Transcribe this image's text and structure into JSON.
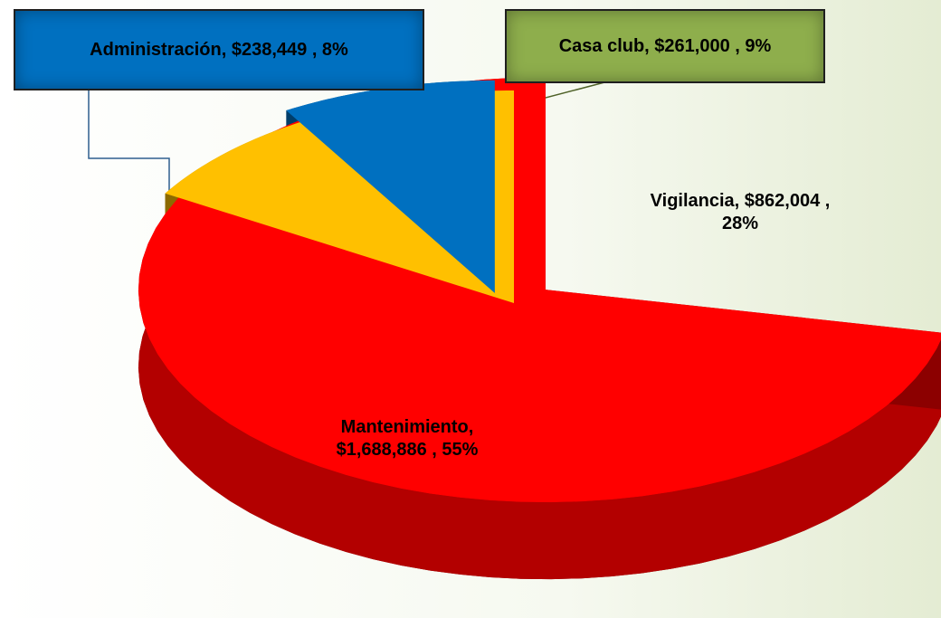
{
  "chart_data": {
    "type": "pie",
    "value_labels": [
      "Vigilancia, $862,004 , 28%",
      "Mantenimiento, $1,688,886 , 55%",
      "Administración,  $238,449 , 8%",
      "Casa club,  $261,000 , 9%"
    ],
    "values": [
      862004,
      1688886,
      238449,
      261000
    ],
    "percents": [
      28,
      55,
      8,
      9
    ],
    "colors": [
      "#ff0000",
      "#ffc000",
      "#0070c0",
      "#77933c"
    ]
  }
}
